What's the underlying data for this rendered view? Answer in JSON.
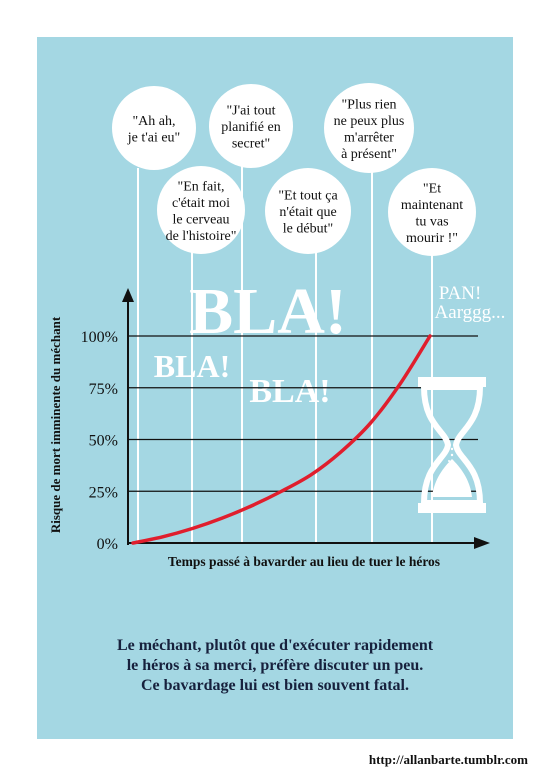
{
  "chart_data": {
    "type": "line",
    "title": "",
    "xlabel": "Temps passé à bavarder au lieu de tuer le héros",
    "ylabel": "Risque de mort imminente du méchant",
    "yticks": [
      "0%",
      "25%",
      "50%",
      "75%",
      "100%"
    ],
    "ylim": [
      0,
      100
    ],
    "xlim": [
      0,
      100
    ],
    "grid": true,
    "series": [
      {
        "color": "#e01e2d",
        "x": [
          0,
          10,
          20,
          30,
          40,
          50,
          60,
          70,
          80,
          90,
          100
        ],
        "y": [
          0,
          3,
          7,
          12,
          18,
          25,
          33,
          44,
          58,
          77,
          100
        ]
      }
    ]
  },
  "bubbles": [
    {
      "lines": [
        "\"Ah ah,",
        "je t'ai eu\""
      ]
    },
    {
      "lines": [
        "\"J'ai tout",
        "planifié en",
        "secret\""
      ]
    },
    {
      "lines": [
        "\"Plus rien",
        "ne peux plus",
        "m'arrêter",
        "à présent\""
      ]
    },
    {
      "lines": [
        "\"En fait,",
        "c'était moi",
        "le cerveau",
        "de l'histoire\""
      ]
    },
    {
      "lines": [
        "\"Et tout ça",
        "n'était que",
        "le début\""
      ]
    },
    {
      "lines": [
        "\"Et",
        "maintenant",
        "tu vas",
        "mourir !\""
      ]
    }
  ],
  "annotations": {
    "bla_big": "BLA!",
    "bla_left": "BLA!",
    "bla_mid": "BLA!",
    "pan": "PAN!",
    "aargh": "Aarggg..."
  },
  "caption": [
    "Le méchant, plutôt que d'exécuter rapidement",
    "le héros à sa merci,  préfère discuter un peu.",
    "Ce bavardage lui est bien souvent fatal."
  ],
  "url": "http://allanbarte.tumblr.com",
  "colors": {
    "background": "#a4d7e3",
    "curve": "#e01e2d",
    "axis": "#111111",
    "bubble": "#ffffff"
  }
}
